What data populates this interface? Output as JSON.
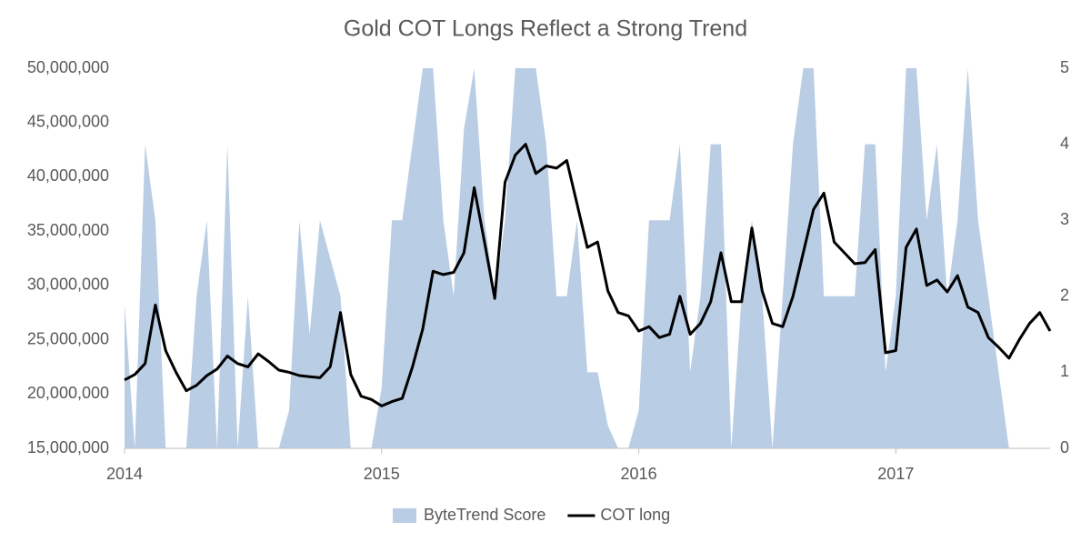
{
  "chart_data": {
    "type": "area-line",
    "title": "Gold COT Longs Reflect a Strong Trend",
    "x": [
      2014,
      2014.04,
      2014.08,
      2014.12,
      2014.16,
      2014.2,
      2014.24,
      2014.28,
      2014.32,
      2014.36,
      2014.4,
      2014.44,
      2014.48,
      2014.52,
      2014.56,
      2014.6,
      2014.64,
      2014.68,
      2014.72,
      2014.76,
      2014.8,
      2014.84,
      2014.88,
      2014.92,
      2014.96,
      2015,
      2015.04,
      2015.08,
      2015.12,
      2015.16,
      2015.2,
      2015.24,
      2015.28,
      2015.32,
      2015.36,
      2015.4,
      2015.44,
      2015.48,
      2015.52,
      2015.56,
      2015.6,
      2015.64,
      2015.68,
      2015.72,
      2015.76,
      2015.8,
      2015.84,
      2015.88,
      2015.92,
      2015.96,
      2016,
      2016.04,
      2016.08,
      2016.12,
      2016.16,
      2016.2,
      2016.24,
      2016.28,
      2016.32,
      2016.36,
      2016.4,
      2016.44,
      2016.48,
      2016.52,
      2016.56,
      2016.6,
      2016.64,
      2016.68,
      2016.72,
      2016.76,
      2016.8,
      2016.84,
      2016.88,
      2016.92,
      2016.96,
      2017,
      2017.04,
      2017.08,
      2017.12,
      2017.16,
      2017.2,
      2017.24,
      2017.28,
      2017.32,
      2017.36,
      2017.4,
      2017.44,
      2017.48,
      2017.52,
      2017.56,
      2017.6
    ],
    "series": [
      {
        "name": "ByteTrend Score",
        "color": "#b9cde5",
        "axis": "y2",
        "kind": "area",
        "values": [
          1.9,
          0,
          4,
          3,
          0,
          0,
          0,
          2,
          3,
          0,
          4,
          0,
          2,
          0,
          0,
          0,
          0.5,
          3,
          1.5,
          3,
          2.5,
          2,
          0,
          0,
          0,
          0.8,
          3,
          3,
          4,
          5,
          5,
          3,
          2,
          4.2,
          5,
          3,
          2,
          3,
          5,
          5,
          5,
          4,
          2,
          2,
          3,
          1,
          1,
          0.3,
          0,
          0,
          0.5,
          3,
          3,
          3,
          4,
          1,
          2,
          4,
          4,
          0,
          2,
          3,
          2,
          0,
          2,
          4,
          5,
          5,
          2,
          2,
          2,
          2,
          4,
          4,
          1,
          2,
          5,
          5,
          3,
          4,
          2,
          3,
          5,
          3,
          2,
          1,
          0,
          0,
          0,
          0,
          0
        ]
      },
      {
        "name": "COT long",
        "color": "#000000",
        "axis": "y",
        "kind": "line",
        "values": [
          21300000,
          21800000,
          22800000,
          28200000,
          24000000,
          22000000,
          20300000,
          20800000,
          21700000,
          22300000,
          23500000,
          22800000,
          22500000,
          23700000,
          23000000,
          22200000,
          22000000,
          21700000,
          21600000,
          21500000,
          22500000,
          27500000,
          21800000,
          19800000,
          19500000,
          18900000,
          19300000,
          19600000,
          22500000,
          26000000,
          31300000,
          31000000,
          31200000,
          33000000,
          39000000,
          34000000,
          28800000,
          39500000,
          42000000,
          43000000,
          40300000,
          41000000,
          40800000,
          41500000,
          37500000,
          33500000,
          34000000,
          29500000,
          27500000,
          27200000,
          25800000,
          26200000,
          25200000,
          25500000,
          29000000,
          25500000,
          26500000,
          28500000,
          33000000,
          28500000,
          28500000,
          35300000,
          29500000,
          26500000,
          26200000,
          29000000,
          33000000,
          37000000,
          38500000,
          34000000,
          33000000,
          32000000,
          32100000,
          33300000,
          23800000,
          24000000,
          33500000,
          35200000,
          30000000,
          30500000,
          29400000,
          30900000,
          28000000,
          27500000,
          25200000,
          24300000,
          23300000,
          25000000,
          26500000,
          27500000,
          25800000
        ]
      }
    ],
    "xlim": [
      2014,
      2017.6
    ],
    "xticks": [
      2014,
      2015,
      2016,
      2017
    ],
    "ylim": [
      15000000,
      50000000
    ],
    "yticks": [
      {
        "value": 15000000,
        "label": "15,000,000"
      },
      {
        "value": 20000000,
        "label": "20,000,000"
      },
      {
        "value": 25000000,
        "label": "25,000,000"
      },
      {
        "value": 30000000,
        "label": "30,000,000"
      },
      {
        "value": 35000000,
        "label": "35,000,000"
      },
      {
        "value": 40000000,
        "label": "40,000,000"
      },
      {
        "value": 45000000,
        "label": "45,000,000"
      },
      {
        "value": 50000000,
        "label": "50,000,000"
      }
    ],
    "y2lim": [
      0,
      5
    ],
    "y2ticks": [
      0,
      1,
      2,
      3,
      4,
      5
    ],
    "legend": "bottom"
  }
}
